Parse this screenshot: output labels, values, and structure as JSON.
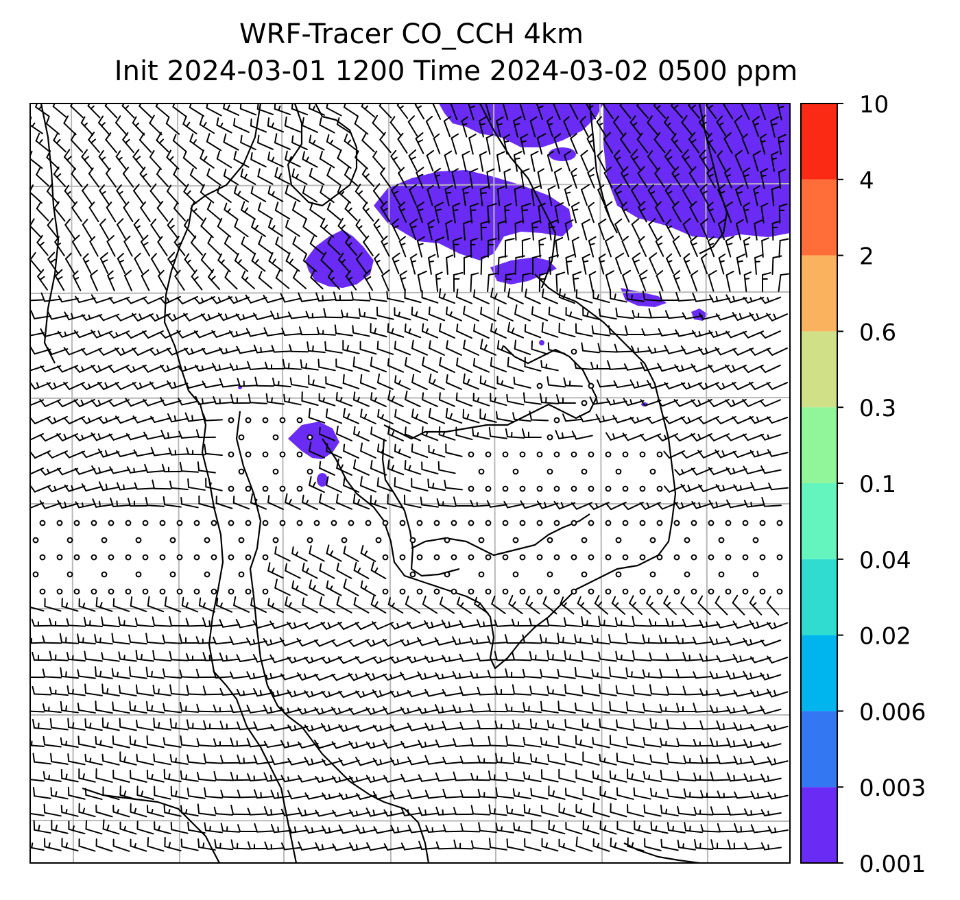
{
  "title": {
    "line1": "WRF-Tracer CO_CCH 4km",
    "line2": "Init 2024-03-01 1200 Time 2024-03-02 0500 ppm"
  },
  "colorbar": {
    "levels": [
      "0.001",
      "0.003",
      "0.006",
      "0.02",
      "0.04",
      "0.1",
      "0.3",
      "0.6",
      "2",
      "4",
      "10"
    ],
    "colors": [
      "#6a2cf5",
      "#3378f2",
      "#00b4ee",
      "#2fdccf",
      "#63f5bd",
      "#91f59a",
      "#cfe086",
      "#fbb25e",
      "#ff6e38",
      "#fb2a14"
    ]
  },
  "map": {
    "wind_barbs": true,
    "coastlines": true,
    "gridlines": true,
    "tracer_color": "#6a2cf5"
  }
}
